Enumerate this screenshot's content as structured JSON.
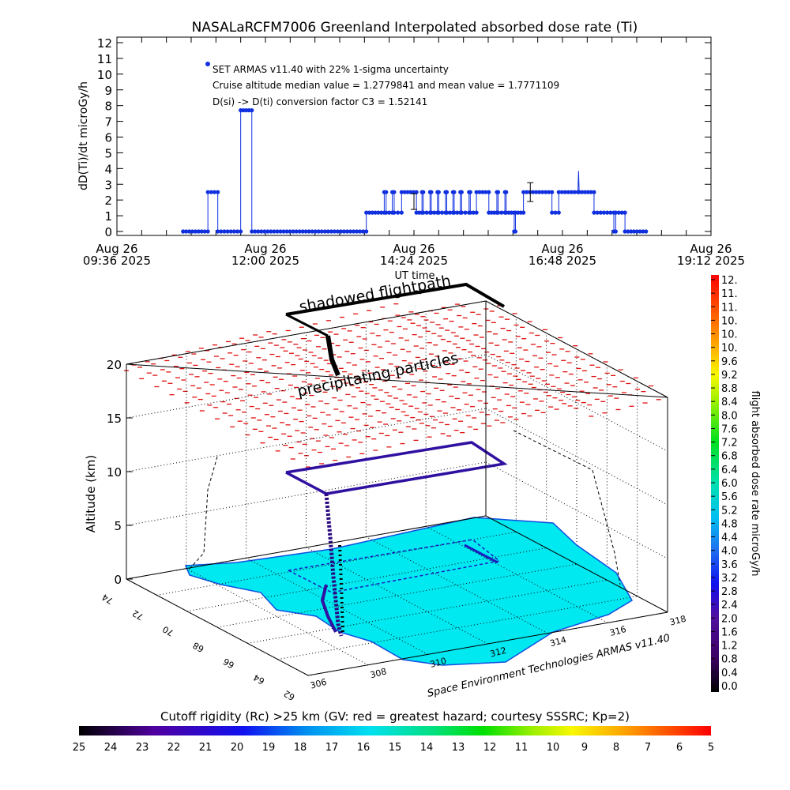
{
  "title": "NASALaRCFM7006  Greenland Interpolated absorbed dose rate (Ti)",
  "chart_data": [
    {
      "type": "line",
      "name": "time-series",
      "ylabel": "dD(Ti)/dt microGy/h",
      "xlabel": "UT time",
      "ylim": [
        0,
        12
      ],
      "yticks": [
        "0",
        "1",
        "2",
        "3",
        "4",
        "5",
        "6",
        "7",
        "8",
        "9",
        "10",
        "11",
        "12"
      ],
      "xlim_hours": [
        9.6,
        19.2
      ],
      "xticks": [
        {
          "hour": 9.6,
          "line1": "Aug 26",
          "line2": "09:36 2025"
        },
        {
          "hour": 12.0,
          "line1": "Aug 26",
          "line2": "12:00 2025"
        },
        {
          "hour": 14.4,
          "line1": "Aug 26",
          "line2": "14:24 2025"
        },
        {
          "hour": 16.8,
          "line1": "Aug 26",
          "line2": "16:48 2025"
        },
        {
          "hour": 19.2,
          "line1": "Aug 26",
          "line2": "19:12 2025"
        }
      ],
      "annotations": [
        "SET ARMAS v11.40 with 22% 1-sigma uncertainty",
        "Cruise altitude median value = 1.2779841 and mean value = 1.7771109",
        "D(si) -> D(ti) conversion factor C3 = 1.52141"
      ],
      "series_color": "#1030e0",
      "points": [
        [
          10.67,
          0
        ],
        [
          11.07,
          0
        ],
        [
          11.07,
          2.5
        ],
        [
          11.23,
          2.5
        ],
        [
          11.23,
          0
        ],
        [
          11.6,
          0
        ],
        [
          11.6,
          7.7
        ],
        [
          11.78,
          7.7
        ],
        [
          11.78,
          0
        ],
        [
          13.63,
          0
        ],
        [
          13.63,
          1.2
        ],
        [
          13.92,
          1.2
        ],
        [
          13.92,
          2.5
        ],
        [
          13.95,
          2.5
        ],
        [
          13.95,
          1.2
        ],
        [
          14.05,
          1.2
        ],
        [
          14.05,
          2.5
        ],
        [
          14.08,
          2.5
        ],
        [
          14.08,
          1.2
        ],
        [
          14.2,
          1.2
        ],
        [
          14.2,
          2.5
        ],
        [
          14.44,
          2.5
        ],
        [
          14.44,
          1.2
        ],
        [
          14.53,
          1.2
        ],
        [
          14.53,
          2.5
        ],
        [
          14.55,
          2.5
        ],
        [
          14.55,
          1.2
        ],
        [
          14.66,
          1.2
        ],
        [
          14.66,
          2.5
        ],
        [
          14.68,
          2.5
        ],
        [
          14.68,
          1.2
        ],
        [
          14.78,
          1.2
        ],
        [
          14.78,
          2.5
        ],
        [
          14.8,
          2.5
        ],
        [
          14.8,
          1.2
        ],
        [
          14.91,
          1.2
        ],
        [
          14.91,
          2.5
        ],
        [
          14.93,
          2.5
        ],
        [
          14.93,
          1.2
        ],
        [
          15.03,
          1.2
        ],
        [
          15.03,
          2.5
        ],
        [
          15.05,
          2.5
        ],
        [
          15.05,
          1.2
        ],
        [
          15.15,
          1.2
        ],
        [
          15.15,
          2.5
        ],
        [
          15.17,
          2.5
        ],
        [
          15.17,
          1.2
        ],
        [
          15.29,
          1.2
        ],
        [
          15.29,
          2.5
        ],
        [
          15.31,
          2.5
        ],
        [
          15.31,
          1.2
        ],
        [
          15.41,
          1.2
        ],
        [
          15.41,
          2.5
        ],
        [
          15.61,
          2.5
        ],
        [
          15.61,
          1.2
        ],
        [
          15.74,
          1.2
        ],
        [
          15.74,
          2.5
        ],
        [
          15.76,
          2.5
        ],
        [
          15.76,
          1.2
        ],
        [
          15.87,
          1.2
        ],
        [
          15.87,
          2.5
        ],
        [
          15.89,
          2.5
        ],
        [
          15.89,
          1.2
        ],
        [
          16.02,
          1.2
        ],
        [
          16.02,
          0
        ],
        [
          16.04,
          0
        ],
        [
          16.04,
          1.2
        ],
        [
          16.17,
          1.2
        ],
        [
          16.17,
          2.5
        ],
        [
          16.63,
          2.5
        ],
        [
          16.63,
          1.2
        ],
        [
          16.74,
          1.2
        ],
        [
          16.74,
          2.5
        ],
        [
          17.05,
          2.5
        ],
        [
          17.06,
          3.85
        ],
        [
          17.07,
          2.5
        ],
        [
          17.31,
          2.5
        ],
        [
          17.31,
          1.2
        ],
        [
          17.63,
          1.2
        ],
        [
          17.63,
          0
        ],
        [
          17.66,
          0
        ],
        [
          17.66,
          1.2
        ],
        [
          17.81,
          1.2
        ],
        [
          17.81,
          0
        ],
        [
          18.15,
          0
        ]
      ],
      "error_bars": [
        {
          "hour": 14.4,
          "low": 1.4,
          "high": 2.4
        },
        {
          "hour": 16.28,
          "low": 1.9,
          "high": 3.1
        }
      ]
    },
    {
      "type": "3d-surface",
      "name": "flight-3d",
      "zlabel": "Altitude (km)",
      "zticks": [
        "0",
        "5",
        "10",
        "15",
        "20"
      ],
      "lat_ticks": [
        "74",
        "72",
        "70",
        "68",
        "66",
        "64",
        "62"
      ],
      "lon_ticks": [
        "306",
        "308",
        "310",
        "312",
        "314",
        "316",
        "318"
      ],
      "labels": {
        "shadowed": "shadowed flightpath",
        "precip": "precipitating particles",
        "ut": "UT time",
        "credit": "Space Environment Technologies ARMAS v11.40"
      },
      "flight_altitude_km": 10,
      "shadow_altitude_km": 20
    }
  ],
  "dose_colorbar": {
    "label": "flight absorbed dose rate microGy/h",
    "ticks": [
      "12.",
      "11.",
      "11.",
      "10.",
      "10.",
      "10.",
      "9.6",
      "9.2",
      "8.8",
      "8.4",
      "8.0",
      "7.6",
      "7.2",
      "6.8",
      "6.4",
      "6.0",
      "5.6",
      "5.2",
      "4.8",
      "4.4",
      "4.0",
      "3.6",
      "3.2",
      "2.8",
      "2.4",
      "2.0",
      "1.6",
      "1.2",
      "0.8",
      "0.4",
      "0.0"
    ]
  },
  "rigidity_colorbar": {
    "label": "Cutoff rigidity (Rc) >25 km (GV: red = greatest hazard; courtesy SSSRC; Kp=2)",
    "ticks": [
      "25",
      "24",
      "23",
      "22",
      "21",
      "20",
      "19",
      "18",
      "17",
      "16",
      "15",
      "14",
      "13",
      "12",
      "11",
      "10",
      "9",
      "8",
      "7",
      "6",
      "5"
    ]
  },
  "colors": {
    "land": "#00e8f0",
    "land_edge": "#1050e0",
    "path": "#3010a0",
    "shadow": "#000000",
    "precip": "#e01010"
  }
}
